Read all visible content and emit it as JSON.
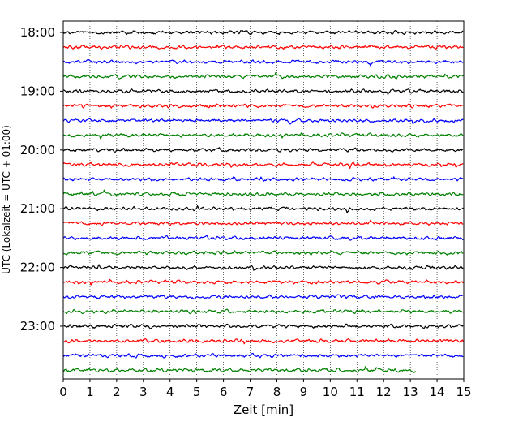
{
  "chart_data": {
    "type": "line",
    "title": "",
    "xlabel": "Zeit  [min]",
    "ylabel": "UTC (Lokalzeit = UTC + 01:00)",
    "xlim": [
      0,
      15
    ],
    "x_ticks": [
      "0",
      "1",
      "2",
      "3",
      "4",
      "5",
      "6",
      "7",
      "8",
      "9",
      "10",
      "11",
      "12",
      "13",
      "14",
      "15"
    ],
    "y_ticks": [
      "18:00",
      "19:00",
      "20:00",
      "21:00",
      "22:00",
      "23:00"
    ],
    "grid": "vertical dotted",
    "trace_interval_min": 15,
    "traces_per_hour": 4,
    "trace_colors": [
      "#000000",
      "#ff0000",
      "#0000ff",
      "#008000"
    ],
    "traces": [
      {
        "start": "18:00",
        "end_min": 15
      },
      {
        "start": "18:15",
        "end_min": 15
      },
      {
        "start": "18:30",
        "end_min": 15
      },
      {
        "start": "18:45",
        "end_min": 15
      },
      {
        "start": "19:00",
        "end_min": 15
      },
      {
        "start": "19:15",
        "end_min": 15
      },
      {
        "start": "19:30",
        "end_min": 15
      },
      {
        "start": "19:45",
        "end_min": 15
      },
      {
        "start": "20:00",
        "end_min": 15
      },
      {
        "start": "20:15",
        "end_min": 15
      },
      {
        "start": "20:30",
        "end_min": 15
      },
      {
        "start": "20:45",
        "end_min": 15
      },
      {
        "start": "21:00",
        "end_min": 15
      },
      {
        "start": "21:15",
        "end_min": 15
      },
      {
        "start": "21:30",
        "end_min": 15
      },
      {
        "start": "21:45",
        "end_min": 15
      },
      {
        "start": "22:00",
        "end_min": 15
      },
      {
        "start": "22:15",
        "end_min": 15
      },
      {
        "start": "22:30",
        "end_min": 15
      },
      {
        "start": "22:45",
        "end_min": 15
      },
      {
        "start": "23:00",
        "end_min": 15
      },
      {
        "start": "23:15",
        "end_min": 15
      },
      {
        "start": "23:30",
        "end_min": 15
      },
      {
        "start": "23:45",
        "end_min": 13.2
      }
    ]
  }
}
